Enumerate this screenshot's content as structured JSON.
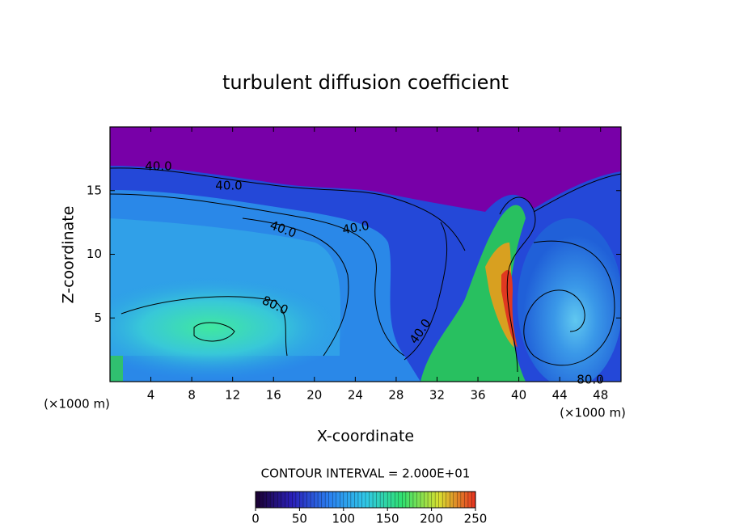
{
  "chart_data": {
    "type": "contour",
    "title": "turbulent diffusion coefficient",
    "xlabel": "X-coordinate",
    "ylabel": "Z-coordinate",
    "xunit": "(×1000 m)",
    "yunit": "(×1000 m)",
    "xlim": [
      0,
      50
    ],
    "ylim": [
      0,
      20
    ],
    "xticks": [
      4,
      8,
      12,
      16,
      20,
      24,
      28,
      32,
      36,
      40,
      44,
      48
    ],
    "yticks": [
      5,
      10,
      15
    ],
    "contour_labels": [
      "40.0",
      "40.0",
      "40.0",
      "40.0",
      "80.0",
      "40.0",
      "80.0"
    ],
    "contour_interval": "CONTOUR INTERVAL = 2.000E+01",
    "colorbar_lim": [
      0,
      250
    ],
    "colorbar_ticks": [
      0,
      50,
      100,
      150,
      200,
      250
    ],
    "colormap": [
      "#1a0030",
      "#2a1fb8",
      "#2a7ff0",
      "#30c8e8",
      "#30e070",
      "#d8e030",
      "#e83020"
    ]
  }
}
